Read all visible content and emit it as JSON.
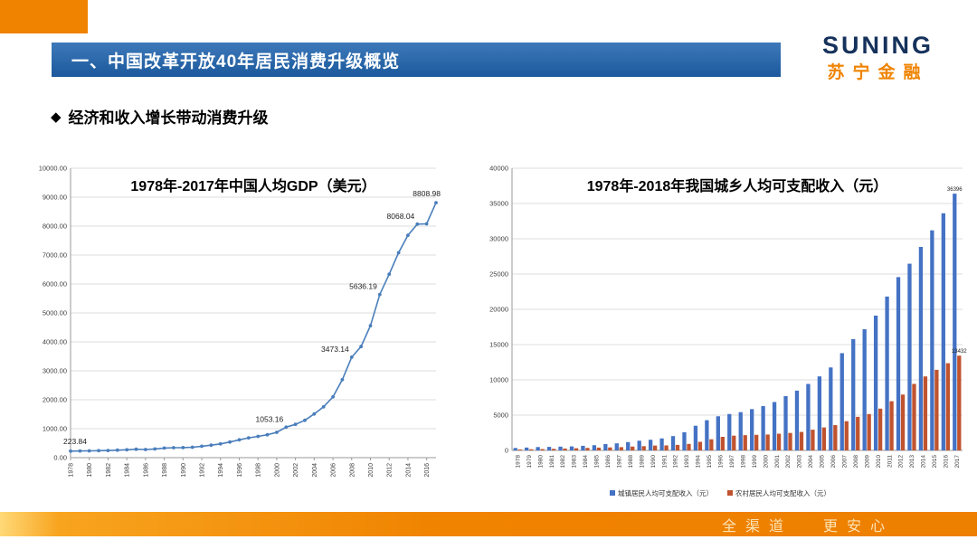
{
  "header": {
    "banner_title": "一、中国改革开放40年居民消费升级概览",
    "logo_text": "SUNING",
    "logo_subtext": "苏宁金融"
  },
  "section": {
    "bullet": "◆",
    "title": "经济和收入增长带动消费升级"
  },
  "footer": {
    "slogan_left": "全渠道",
    "slogan_right": "更安心"
  },
  "colors": {
    "accent_orange": "#F08300",
    "banner_blue": "#1E63AE",
    "line_blue": "#4A7EBB",
    "bar_urban": "#4472C4",
    "bar_rural": "#C0532F"
  },
  "chart_data": [
    {
      "type": "line",
      "title": "1978年-2017年中国人均GDP（美元）",
      "x": [
        1978,
        1979,
        1980,
        1981,
        1982,
        1983,
        1984,
        1985,
        1986,
        1987,
        1988,
        1989,
        1990,
        1991,
        1992,
        1993,
        1994,
        1995,
        1996,
        1997,
        1998,
        1999,
        2000,
        2001,
        2002,
        2003,
        2004,
        2005,
        2006,
        2007,
        2008,
        2009,
        2010,
        2011,
        2012,
        2013,
        2014,
        2015,
        2016,
        2017
      ],
      "values": [
        223.84,
        230,
        235,
        240,
        248,
        258,
        272,
        292,
        282,
        300,
        330,
        345,
        348,
        360,
        395,
        430,
        475,
        540,
        615,
        685,
        735,
        790,
        875,
        1053.16,
        1150,
        1290,
        1510,
        1755,
        2100,
        2695,
        3473.14,
        3838,
        4560,
        5636.19,
        6338,
        7080,
        7680,
        8068.04,
        8079,
        8808.98
      ],
      "ylim": [
        0,
        10000
      ],
      "ytick_step": 1000,
      "xtick_every": 2,
      "grid": true,
      "line_color_key": "line_blue",
      "annotations": [
        {
          "x": 1978,
          "text": "223.84"
        },
        {
          "x": 2001,
          "text": "1053.16"
        },
        {
          "x": 2008,
          "text": "3473.14"
        },
        {
          "x": 2011,
          "text": "5636.19"
        },
        {
          "x": 2015,
          "text": "8068.04"
        },
        {
          "x": 2017,
          "text": "8808.98"
        }
      ]
    },
    {
      "type": "bar",
      "title": "1978年-2018年我国城乡人均可支配收入（元）",
      "categories": [
        "1978",
        "1979",
        "1980",
        "1981",
        "1982",
        "1983",
        "1984",
        "1985",
        "1986",
        "1987",
        "1988",
        "1989",
        "1990",
        "1991",
        "1992",
        "1993",
        "1994",
        "1995",
        "1996",
        "1997",
        "1998",
        "1999",
        "2000",
        "2001",
        "2002",
        "2003",
        "2004",
        "2005",
        "2006",
        "2007",
        "2008",
        "2009",
        "2010",
        "2011",
        "2012",
        "2013",
        "2014",
        "2015",
        "2016",
        "2017"
      ],
      "series": [
        {
          "name": "城镇居民人均可支配收入（元）",
          "color_key": "bar_urban",
          "values": [
            343,
            405,
            478,
            500,
            535,
            565,
            652,
            739,
            902,
            1002,
            1180,
            1374,
            1510,
            1701,
            2027,
            2577,
            3496,
            4283,
            4839,
            5160,
            5425,
            5854,
            6280,
            6860,
            7703,
            8472,
            9422,
            10493,
            11760,
            13786,
            15781,
            17175,
            19109,
            21810,
            24565,
            26467,
            28844,
            31195,
            33616,
            36396
          ]
        },
        {
          "name": "农村居民人均可支配收入（元）",
          "color_key": "bar_rural",
          "values": [
            134,
            160,
            191,
            223,
            270,
            310,
            355,
            398,
            424,
            463,
            545,
            602,
            686,
            709,
            784,
            922,
            1221,
            1578,
            1926,
            2090,
            2162,
            2210,
            2253,
            2366,
            2476,
            2622,
            2936,
            3255,
            3587,
            4140,
            4761,
            5153,
            5919,
            6977,
            7917,
            9430,
            10489,
            11422,
            12363,
            13432
          ]
        }
      ],
      "ylim": [
        0,
        40000
      ],
      "ytick_step": 5000,
      "grid": true,
      "legend_position": "bottom",
      "annotations": [
        {
          "series": 0,
          "category": "2017",
          "text": "36396"
        },
        {
          "series": 1,
          "category": "2017",
          "text": "13432"
        }
      ]
    }
  ]
}
